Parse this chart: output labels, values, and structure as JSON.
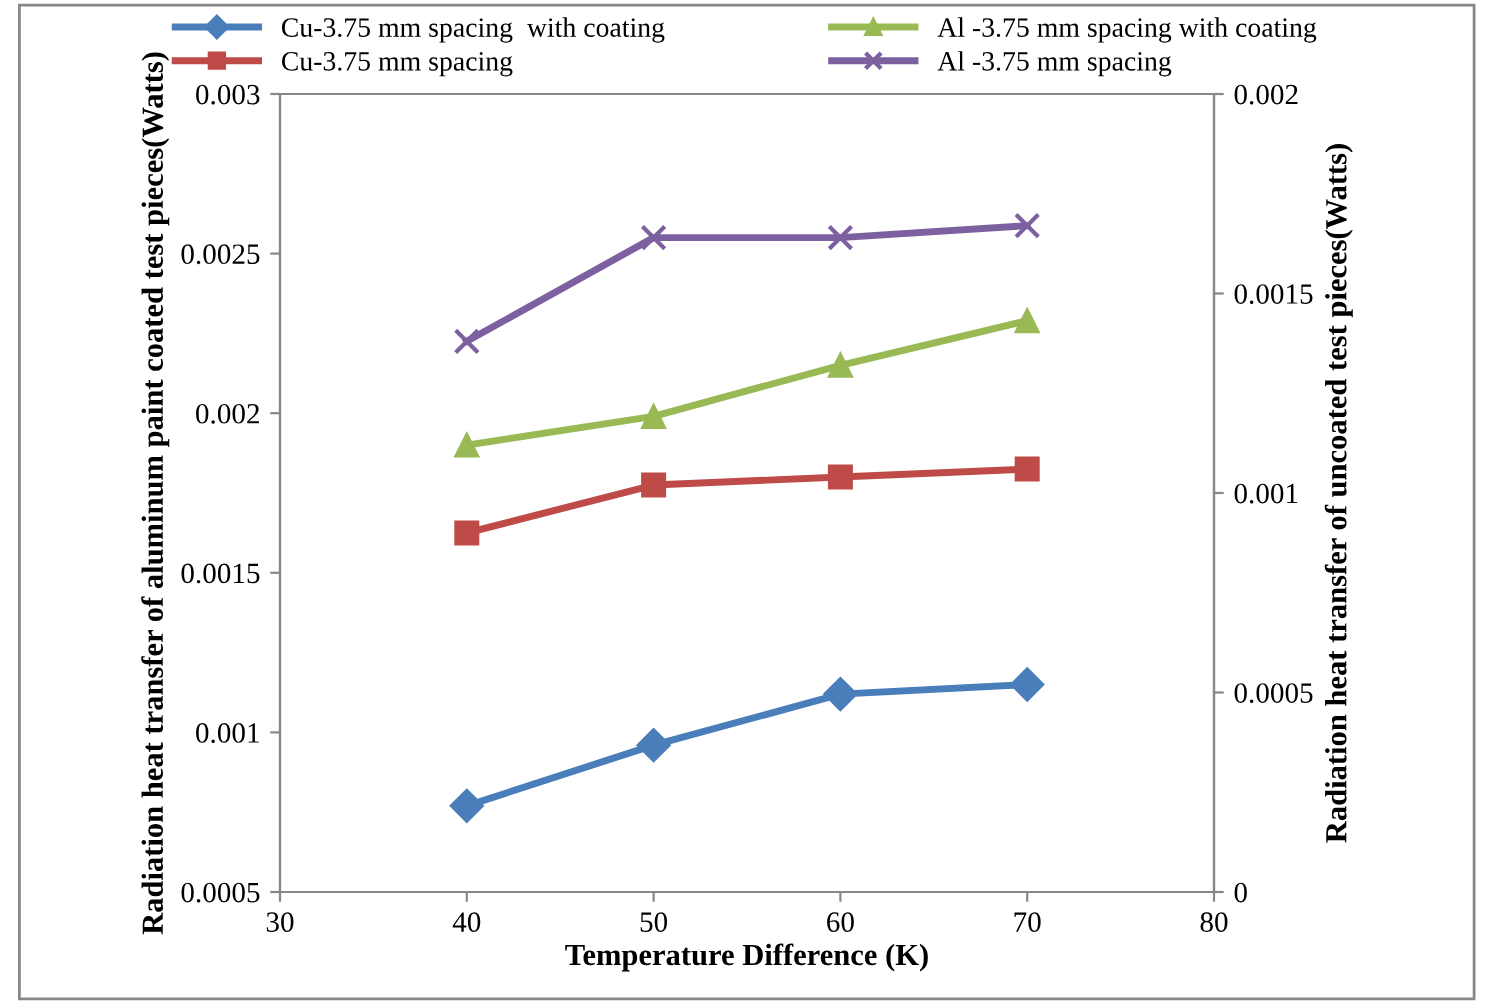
{
  "chart_data": {
    "type": "line",
    "xlabel": "Temperature Difference (K)",
    "ylabel": "Radiation heat transfer of aluminum paint coated test pieces(Watts)",
    "y2label": "Radiation heat transfer of uncoated test pieces(Watts)",
    "x": [
      40,
      50,
      60,
      70
    ],
    "series": [
      {
        "name": "Cu-3.75 mm spacing  with coating",
        "color": "#4a7ebb",
        "values": [
          0.00077,
          0.00096,
          0.00112,
          0.00115
        ],
        "marker": "diamond"
      },
      {
        "name": "Al -3.75 mm spacing with coating",
        "color": "#98b954",
        "values": [
          0.0019,
          0.00199,
          0.00215,
          0.00229
        ],
        "marker": "triangle"
      },
      {
        "name": "Cu-3.75 mm spacing",
        "color": "#be4b48",
        "values": [
          0.0009,
          0.00102,
          0.00104,
          0.00106
        ],
        "marker": "square",
        "axis": "y2"
      },
      {
        "name": "Al -3.75 mm spacing",
        "color": "#7d60a0",
        "values": [
          0.00138,
          0.00164,
          0.00164,
          0.00167
        ],
        "marker": "cross",
        "axis": "y2"
      }
    ],
    "xlim": [
      30,
      80
    ],
    "xticks": [
      30,
      40,
      50,
      60,
      70,
      80
    ],
    "ylim": [
      0.0005,
      0.003
    ],
    "yticks": [
      {
        "value": 0.0005,
        "label": "0.0005"
      },
      {
        "value": 0.001,
        "label": "0.001"
      },
      {
        "value": 0.0015,
        "label": "0.0015"
      },
      {
        "value": 0.002,
        "label": "0.002"
      },
      {
        "value": 0.0025,
        "label": "0.0025"
      },
      {
        "value": 0.003,
        "label": "0.003"
      }
    ],
    "y2lim": [
      0,
      0.002
    ],
    "y2ticks": [
      0,
      {
        "value": 0.0005,
        "label": "0.0005"
      },
      {
        "value": 0.001,
        "label": "0.001"
      },
      {
        "value": 0.0015,
        "label": "0.0015"
      },
      {
        "value": 0.002,
        "label": "0.002"
      }
    ],
    "grid": false,
    "legend": "top",
    "line_style": "solid"
  }
}
